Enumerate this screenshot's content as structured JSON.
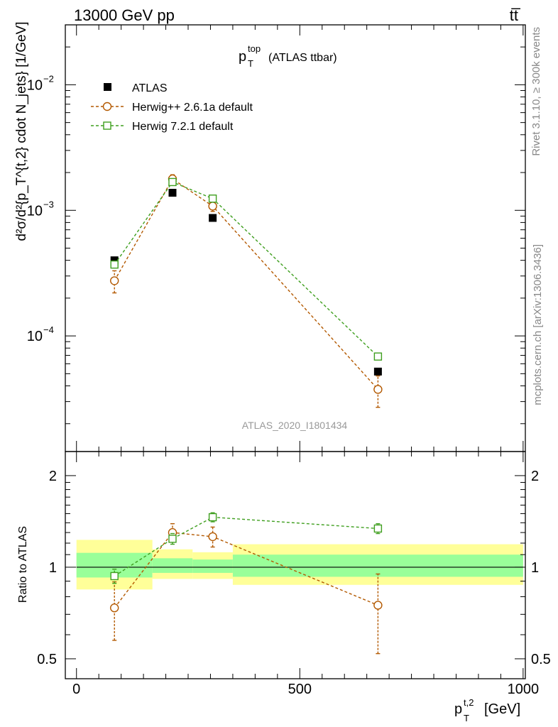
{
  "header": {
    "energy_label": "13000 GeV pp",
    "process_label": "tt̅"
  },
  "side_labels": {
    "rivet": "Rivet 3.1.10, ≥ 300k events",
    "mcplots": "mcplots.cern.ch [arXiv:1306.3436]"
  },
  "watermark": "ATLAS_2020_I1801434",
  "colors": {
    "atlas": "#000000",
    "herwigpp": "#b35900",
    "herwig7": "#3f9f1f",
    "band_yellow": "#ffff99",
    "band_green": "#99ff99"
  },
  "chart_data": [
    {
      "type": "scatter",
      "scale": "log",
      "title_main": "p",
      "title_sup": "top",
      "title_sub": "T",
      "title_suffix": "(ATLAS ttbar)",
      "ylabel": "d²σ/d²{p_T^{t,2} cdot N_jets} [1/GeV]",
      "ylim": [
        1.2e-05,
        0.03
      ],
      "y_ticks": [
        {
          "value": 0.01,
          "base": "10",
          "exp": "−2"
        },
        {
          "value": 0.001,
          "base": "10",
          "exp": "−3"
        },
        {
          "value": 0.0001,
          "base": "10",
          "exp": "−4"
        }
      ],
      "series": [
        {
          "name": "ATLAS",
          "key": "atlas",
          "marker": "filled-square",
          "x": [
            85,
            215,
            305,
            675
          ],
          "y": [
            0.0004,
            0.00138,
            0.00087,
            5.2e-05
          ]
        },
        {
          "name": "Herwig++ 2.6.1a default",
          "key": "herwigpp",
          "marker": "open-circle",
          "x": [
            85,
            215,
            305,
            675
          ],
          "y": [
            0.000275,
            0.00178,
            0.00108,
            3.75e-05
          ],
          "err_low": [
            5.5e-05,
            0.00014,
            0.0001,
            1.05e-05
          ],
          "err_high": [
            5.5e-05,
            0.00014,
            0.0001,
            1.05e-05
          ]
        },
        {
          "name": "Herwig 7.2.1 default",
          "key": "herwig7",
          "marker": "open-square",
          "x": [
            85,
            215,
            305,
            675
          ],
          "y": [
            0.00037,
            0.00168,
            0.00124,
            6.85e-05
          ],
          "err_low": [
            2e-05,
            7e-05,
            5e-05,
            3e-06
          ],
          "err_high": [
            2e-05,
            7e-05,
            5e-05,
            3e-06
          ]
        }
      ]
    },
    {
      "type": "scatter",
      "scale": "log",
      "ylabel": "Ratio to ATLAS",
      "ylim": [
        0.43,
        2.4
      ],
      "y_ticks": [
        {
          "value": 0.5,
          "label": "0.5"
        },
        {
          "value": 1,
          "label": "1"
        },
        {
          "value": 2,
          "label": "2"
        }
      ],
      "xlabel_main": "p",
      "xlabel_sup": "t,2",
      "xlabel_sub": "T",
      "xlabel_suffix": "[GeV]",
      "xlim": [
        -25,
        1005
      ],
      "x_ticks": [
        0,
        500,
        1000
      ],
      "reference": 1,
      "bands": [
        {
          "x0": 0,
          "x1": 170,
          "y_lo": 0.845,
          "y_hi": 1.23,
          "g_lo": 0.925,
          "g_hi": 1.115
        },
        {
          "x0": 170,
          "x1": 260,
          "y_lo": 0.915,
          "y_hi": 1.145,
          "g_lo": 0.958,
          "g_hi": 1.07
        },
        {
          "x0": 260,
          "x1": 350,
          "y_lo": 0.915,
          "y_hi": 1.12,
          "g_lo": 0.958,
          "g_hi": 1.06
        },
        {
          "x0": 350,
          "x1": 1000,
          "y_lo": 0.875,
          "y_hi": 1.19,
          "g_lo": 0.93,
          "g_hi": 1.1
        }
      ],
      "series": [
        {
          "name": "Herwig++ 2.6.1a default",
          "key": "herwigpp",
          "marker": "open-circle",
          "x": [
            85,
            215,
            305,
            675
          ],
          "y": [
            0.735,
            1.3,
            1.26,
            0.75
          ],
          "err_low": [
            0.16,
            0.09,
            0.095,
            0.23
          ],
          "err_high": [
            0.16,
            0.09,
            0.095,
            0.2
          ]
        },
        {
          "name": "Herwig 7.2.1 default",
          "key": "herwig7",
          "marker": "open-square",
          "x": [
            85,
            215,
            305,
            675
          ],
          "y": [
            0.935,
            1.24,
            1.46,
            1.34
          ],
          "err_low": [
            0.05,
            0.05,
            0.05,
            0.05
          ],
          "err_high": [
            0.05,
            0.05,
            0.05,
            0.05
          ]
        }
      ]
    }
  ]
}
